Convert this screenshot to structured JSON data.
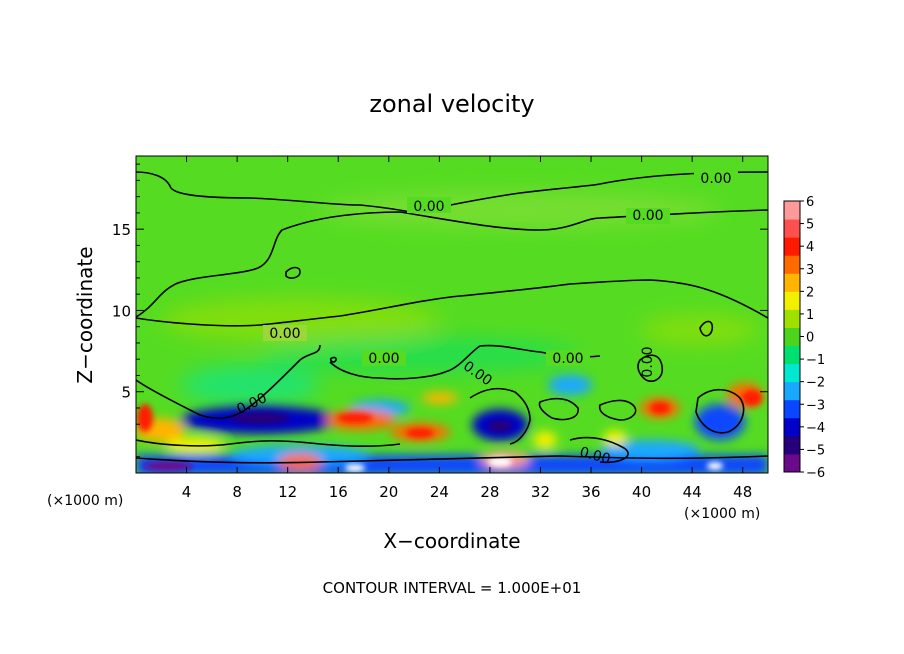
{
  "chart_data": {
    "type": "heatmap",
    "title": "zonal velocity",
    "xlabel": "X−coordinate",
    "ylabel": "Z−coordinate",
    "x_unit_left": "(×1000 m)",
    "x_unit_right": "(×1000 m)",
    "xlim": [
      0,
      50
    ],
    "ylim": [
      0,
      19.5
    ],
    "x_ticks": [
      4,
      8,
      12,
      16,
      20,
      24,
      28,
      32,
      36,
      40,
      44,
      48
    ],
    "y_ticks": [
      5,
      10,
      15
    ],
    "colorbar": {
      "range": [
        -6,
        6
      ],
      "ticks": [
        "6",
        "5",
        "4",
        "3",
        "2",
        "1",
        "0",
        "−1",
        "−2",
        "−3",
        "−4",
        "−5",
        "−6"
      ],
      "colors": [
        "#6a0a8a",
        "#26007a",
        "#0000c8",
        "#0a46ff",
        "#1aa8ff",
        "#00e8d0",
        "#00e070",
        "#4cd41e",
        "#a0e000",
        "#f0f000",
        "#ffb400",
        "#ff6a00",
        "#ff1a00",
        "#ff5050",
        "#ff9a9a"
      ]
    },
    "contour_labels": [
      "0.00",
      "0.00",
      "0.00",
      "0.00",
      "0.00",
      "0.00",
      "0.00",
      "0.00",
      "0.00",
      "0.00"
    ],
    "contour_interval": "CONTOUR INTERVAL = 1.000E+01",
    "grid": false
  }
}
